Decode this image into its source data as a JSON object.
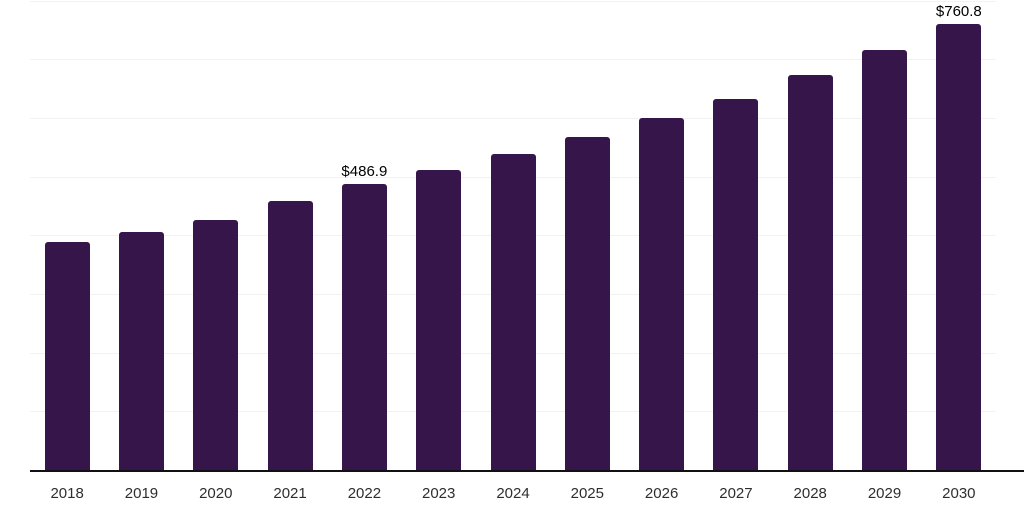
{
  "chart_data": {
    "type": "bar",
    "title": "",
    "xlabel": "",
    "ylabel": "",
    "categories": [
      "2018",
      "2019",
      "2020",
      "2021",
      "2022",
      "2023",
      "2024",
      "2025",
      "2026",
      "2027",
      "2028",
      "2029",
      "2030"
    ],
    "values": [
      388,
      406,
      426,
      459,
      486.9,
      512,
      539,
      567,
      600,
      633,
      674,
      715,
      760.8
    ],
    "value_labels": {
      "2022": "$486.9",
      "2030": "$760.8"
    },
    "ylim": [
      0,
      801
    ],
    "gridline_interval": 100,
    "grid": true,
    "legend_position": "none",
    "colors": {
      "bar": "#35154a",
      "background": "#ffffff",
      "gridline": "#f2f2f2",
      "axis_line": "#111111",
      "tick_label": "#2e2e2e",
      "value_label": "#000000"
    }
  }
}
